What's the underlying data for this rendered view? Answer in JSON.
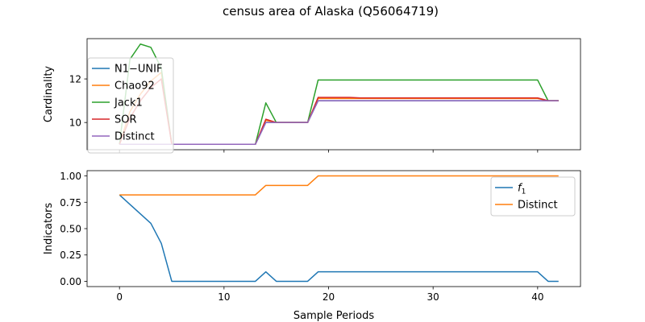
{
  "figure_title": "census area of Alaska (Q56064719)",
  "chart_data": [
    {
      "type": "line",
      "ylabel": "Cardinality",
      "xlabel": "",
      "xlim": [
        -3.1,
        44.1
      ],
      "ylim": [
        8.75,
        13.85
      ],
      "xticks": [
        0,
        10,
        20,
        30,
        40
      ],
      "xtick_labels": [
        "",
        "",
        "",
        "",
        ""
      ],
      "yticks": [
        10,
        12
      ],
      "ytick_labels": [
        "10",
        "12"
      ],
      "grid": false,
      "legend_position": "upper-left",
      "series": [
        {
          "name": "N1−UNIF",
          "color": "#1f77b4",
          "x": [
            0,
            1,
            2,
            3,
            4,
            5,
            6,
            7,
            8,
            9,
            10,
            11,
            12,
            13,
            14,
            15,
            16,
            17,
            18,
            19,
            20,
            21,
            22,
            23,
            24,
            25,
            26,
            27,
            28,
            29,
            30,
            31,
            32,
            33,
            34,
            35,
            36,
            37,
            38,
            39,
            40,
            41,
            42
          ],
          "y": [
            9,
            9,
            9,
            9,
            9,
            9,
            9,
            9,
            9,
            9,
            9,
            9,
            9,
            9,
            10,
            10,
            10,
            10,
            10,
            11,
            11,
            11,
            11,
            11,
            11,
            11,
            11,
            11,
            11,
            11,
            11,
            11,
            11,
            11,
            11,
            11,
            11,
            11,
            11,
            11,
            11,
            11,
            11
          ]
        },
        {
          "name": "Chao92",
          "color": "#ff7f0e",
          "x": [
            0,
            1,
            2,
            3,
            4,
            5,
            6,
            7,
            8,
            9,
            10,
            11,
            12,
            13,
            14,
            15,
            16,
            17,
            18,
            19,
            20,
            21,
            22,
            23,
            24,
            25,
            26,
            27,
            28,
            29,
            30,
            31,
            32,
            33,
            34,
            35,
            36,
            37,
            38,
            39,
            40,
            41,
            42
          ],
          "y": [
            9,
            10.5,
            11.3,
            11.9,
            12.3,
            9,
            9,
            9,
            9,
            9,
            9,
            9,
            9,
            9,
            10.1,
            10,
            10,
            10,
            10,
            11.1,
            11.1,
            11.1,
            11.1,
            11.1,
            11.1,
            11.1,
            11.1,
            11.1,
            11.1,
            11.1,
            11.1,
            11.1,
            11.1,
            11.1,
            11.1,
            11.1,
            11.1,
            11.1,
            11.1,
            11.1,
            11.1,
            11,
            11
          ]
        },
        {
          "name": "Jack1",
          "color": "#2ca02c",
          "x": [
            0,
            1,
            2,
            3,
            4,
            5,
            6,
            7,
            8,
            9,
            10,
            11,
            12,
            13,
            14,
            15,
            16,
            17,
            18,
            19,
            20,
            21,
            22,
            23,
            24,
            25,
            26,
            27,
            28,
            29,
            30,
            31,
            32,
            33,
            34,
            35,
            36,
            37,
            38,
            39,
            40,
            41,
            42
          ],
          "y": [
            9,
            12.9,
            13.6,
            13.45,
            12.5,
            9,
            9,
            9,
            9,
            9,
            9,
            9,
            9,
            9,
            10.9,
            10,
            10,
            10,
            10,
            11.95,
            11.95,
            11.95,
            11.95,
            11.95,
            11.95,
            11.95,
            11.95,
            11.95,
            11.95,
            11.95,
            11.95,
            11.95,
            11.95,
            11.95,
            11.95,
            11.95,
            11.95,
            11.95,
            11.95,
            11.95,
            11.95,
            11,
            11
          ]
        },
        {
          "name": "SOR",
          "color": "#d62728",
          "x": [
            0,
            1,
            2,
            3,
            4,
            5,
            6,
            7,
            8,
            9,
            10,
            11,
            12,
            13,
            14,
            15,
            16,
            17,
            18,
            19,
            20,
            21,
            22,
            23,
            24,
            25,
            26,
            27,
            28,
            29,
            30,
            31,
            32,
            33,
            34,
            35,
            36,
            37,
            38,
            39,
            40,
            41,
            42
          ],
          "y": [
            9,
            10.2,
            11,
            11.6,
            12,
            9,
            9,
            9,
            9,
            9,
            9,
            9,
            9,
            9,
            10.15,
            10,
            10,
            10,
            10,
            11.15,
            11.15,
            11.15,
            11.15,
            11.13,
            11.13,
            11.13,
            11.13,
            11.13,
            11.13,
            11.13,
            11.13,
            11.13,
            11.13,
            11.13,
            11.13,
            11.13,
            11.13,
            11.13,
            11.13,
            11.13,
            11.13,
            11,
            11
          ]
        },
        {
          "name": "Distinct",
          "color": "#9467bd",
          "x": [
            0,
            1,
            2,
            3,
            4,
            5,
            6,
            7,
            8,
            9,
            10,
            11,
            12,
            13,
            14,
            15,
            16,
            17,
            18,
            19,
            20,
            21,
            22,
            23,
            24,
            25,
            26,
            27,
            28,
            29,
            30,
            31,
            32,
            33,
            34,
            35,
            36,
            37,
            38,
            39,
            40,
            41,
            42
          ],
          "y": [
            9,
            9,
            9,
            9,
            9,
            9,
            9,
            9,
            9,
            9,
            9,
            9,
            9,
            9,
            10,
            10,
            10,
            10,
            10,
            11,
            11,
            11,
            11,
            11,
            11,
            11,
            11,
            11,
            11,
            11,
            11,
            11,
            11,
            11,
            11,
            11,
            11,
            11,
            11,
            11,
            11,
            11,
            11
          ]
        }
      ]
    },
    {
      "type": "line",
      "ylabel": "Indicators",
      "xlabel": "Sample Periods",
      "xlim": [
        -3.1,
        44.1
      ],
      "ylim": [
        -0.05,
        1.05
      ],
      "xticks": [
        0,
        10,
        20,
        30,
        40
      ],
      "xtick_labels": [
        "0",
        "10",
        "20",
        "30",
        "40"
      ],
      "yticks": [
        0.0,
        0.25,
        0.5,
        0.75,
        1.0
      ],
      "ytick_labels": [
        "0.00",
        "0.25",
        "0.50",
        "0.75",
        "1.00"
      ],
      "grid": false,
      "legend_position": "upper-right",
      "series": [
        {
          "name": "f1",
          "color": "#1f77b4",
          "x": [
            0,
            1,
            2,
            3,
            4,
            5,
            6,
            7,
            8,
            9,
            10,
            11,
            12,
            13,
            14,
            15,
            16,
            17,
            18,
            19,
            20,
            21,
            22,
            23,
            24,
            25,
            26,
            27,
            28,
            29,
            30,
            31,
            32,
            33,
            34,
            35,
            36,
            37,
            38,
            39,
            40,
            41,
            42
          ],
          "y": [
            0.82,
            0.73,
            0.64,
            0.55,
            0.36,
            0,
            0,
            0,
            0,
            0,
            0,
            0,
            0,
            0,
            0.09,
            0,
            0,
            0,
            0,
            0.09,
            0.09,
            0.09,
            0.09,
            0.09,
            0.09,
            0.09,
            0.09,
            0.09,
            0.09,
            0.09,
            0.09,
            0.09,
            0.09,
            0.09,
            0.09,
            0.09,
            0.09,
            0.09,
            0.09,
            0.09,
            0.09,
            0,
            0
          ]
        },
        {
          "name": "Distinct",
          "color": "#ff7f0e",
          "x": [
            0,
            1,
            2,
            3,
            4,
            5,
            6,
            7,
            8,
            9,
            10,
            11,
            12,
            13,
            14,
            15,
            16,
            17,
            18,
            19,
            20,
            21,
            22,
            23,
            24,
            25,
            26,
            27,
            28,
            29,
            30,
            31,
            32,
            33,
            34,
            35,
            36,
            37,
            38,
            39,
            40,
            41,
            42
          ],
          "y": [
            0.82,
            0.82,
            0.82,
            0.82,
            0.82,
            0.82,
            0.82,
            0.82,
            0.82,
            0.82,
            0.82,
            0.82,
            0.82,
            0.82,
            0.91,
            0.91,
            0.91,
            0.91,
            0.91,
            1,
            1,
            1,
            1,
            1,
            1,
            1,
            1,
            1,
            1,
            1,
            1,
            1,
            1,
            1,
            1,
            1,
            1,
            1,
            1,
            1,
            1,
            1,
            1
          ]
        }
      ]
    }
  ]
}
